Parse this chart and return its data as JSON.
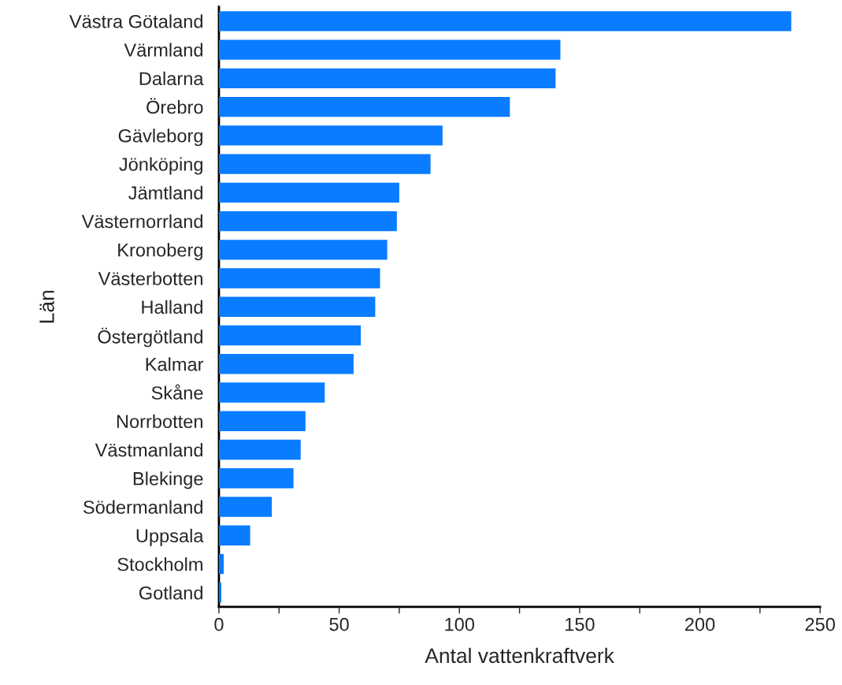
{
  "chart_data": {
    "type": "bar",
    "orientation": "horizontal",
    "xlabel": "Antal vattenkraftverk",
    "ylabel": "Län",
    "categories": [
      "Västra Götaland",
      "Värmland",
      "Dalarna",
      "Örebro",
      "Gävleborg",
      "Jönköping",
      "Jämtland",
      "Västernorrland",
      "Kronoberg",
      "Västerbotten",
      "Halland",
      "Östergötland",
      "Kalmar",
      "Skåne",
      "Norrbotten",
      "Västmanland",
      "Blekinge",
      "Södermanland",
      "Uppsala",
      "Stockholm",
      "Gotland"
    ],
    "values": [
      238,
      142,
      140,
      121,
      93,
      88,
      75,
      74,
      70,
      67,
      65,
      59,
      56,
      44,
      36,
      34,
      31,
      22,
      13,
      2,
      1
    ],
    "color": "#0a7cff",
    "xlim": [
      0,
      250
    ],
    "xticks": [
      0,
      {
        "value": 25,
        "label": null
      },
      50,
      {
        "value": 75,
        "label": null
      },
      100,
      {
        "value": 125,
        "label": null
      },
      150,
      {
        "value": 175,
        "label": null
      },
      200,
      {
        "value": 225,
        "label": null
      },
      250
    ],
    "grid": false,
    "legend": false
  }
}
